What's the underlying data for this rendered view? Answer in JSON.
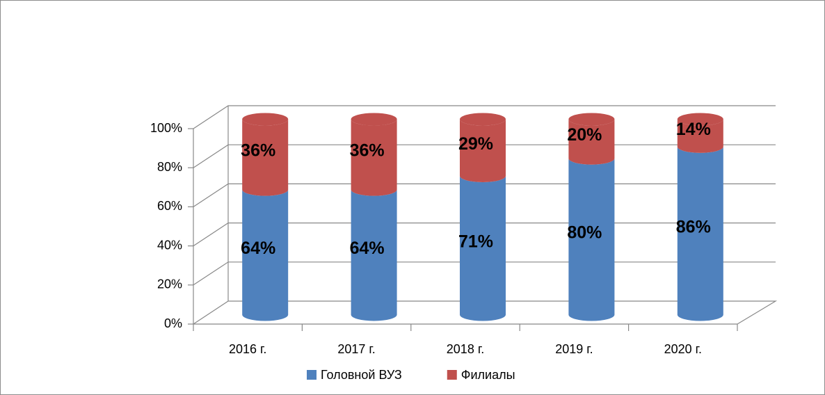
{
  "chart_data": {
    "type": "bar3d_stacked",
    "categories": [
      "2016 г.",
      "2017 г.",
      "2018 г.",
      "2019 г.",
      "2020 г."
    ],
    "series": [
      {
        "name": "Головной ВУЗ",
        "color": "#4f81bd",
        "values": [
          64,
          64,
          71,
          80,
          86
        ],
        "value_labels": [
          "64%",
          "64%",
          "71%",
          "80%",
          "86%"
        ]
      },
      {
        "name": "Филиалы",
        "color": "#c0504d",
        "values": [
          36,
          36,
          29,
          20,
          14
        ],
        "value_labels": [
          "36%",
          "36%",
          "29%",
          "20%",
          "14%"
        ]
      }
    ],
    "ylim": [
      0,
      100
    ],
    "yticks": [
      {
        "value": 0,
        "label": "0%"
      },
      {
        "value": 20,
        "label": "20%"
      },
      {
        "value": 40,
        "label": "40%"
      },
      {
        "value": 60,
        "label": "60%"
      },
      {
        "value": 80,
        "label": "80%"
      },
      {
        "value": 100,
        "label": "100%"
      }
    ],
    "grid": true
  }
}
